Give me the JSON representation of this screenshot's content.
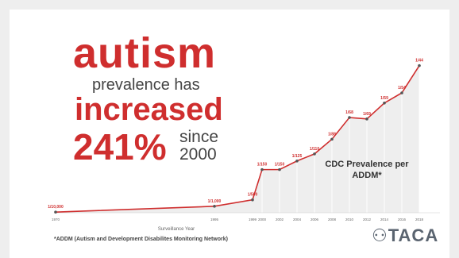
{
  "headline": {
    "word1": "autism",
    "line2": "prevalence has",
    "word3": "increased",
    "percent": "241%",
    "since": "since",
    "year": "2000"
  },
  "chart_data": {
    "type": "area",
    "title": "CDC Prevalence per ADDM*",
    "xlabel": "Surveillance Year",
    "ylabel": "",
    "x": [
      1970,
      1995,
      1999,
      2000,
      2002,
      2004,
      2006,
      2008,
      2010,
      2012,
      2014,
      2016,
      2018
    ],
    "x_tick_labels": [
      "1970",
      "1995",
      "1999",
      "2000",
      "2002",
      "2004",
      "2006",
      "2008",
      "2010",
      "2012",
      "2014",
      "2016",
      "2018"
    ],
    "points": [
      {
        "year": 1970,
        "label": "1/10,000",
        "prevalence": 0.0001
      },
      {
        "year": 1995,
        "label": "1/1,000",
        "prevalence": 0.001
      },
      {
        "year": 1999,
        "label": "1/500",
        "prevalence": 0.002
      },
      {
        "year": 2000,
        "label": "1/150",
        "prevalence": 0.00667
      },
      {
        "year": 2002,
        "label": "1/150",
        "prevalence": 0.00667
      },
      {
        "year": 2004,
        "label": "1/125",
        "prevalence": 0.008
      },
      {
        "year": 2006,
        "label": "1/110",
        "prevalence": 0.00909
      },
      {
        "year": 2008,
        "label": "1/88",
        "prevalence": 0.01136
      },
      {
        "year": 2010,
        "label": "1/68",
        "prevalence": 0.01471
      },
      {
        "year": 2012,
        "label": "1/69",
        "prevalence": 0.01449
      },
      {
        "year": 2014,
        "label": "1/59",
        "prevalence": 0.01695
      },
      {
        "year": 2016,
        "label": "1/54",
        "prevalence": 0.01852
      },
      {
        "year": 2018,
        "label": "1/44",
        "prevalence": 0.02273
      }
    ],
    "ylim": [
      0,
      0.025
    ],
    "grid": true,
    "line_color": "#cf2e2e",
    "fill_color": "#d9d9d9"
  },
  "footnote": "*ADDM (Autism and Development Disabilites Monitoring Network)",
  "logo": {
    "text": "TACA",
    "icon": "people-icon"
  },
  "colors": {
    "accent": "#cf2e2e",
    "text": "#444444"
  }
}
